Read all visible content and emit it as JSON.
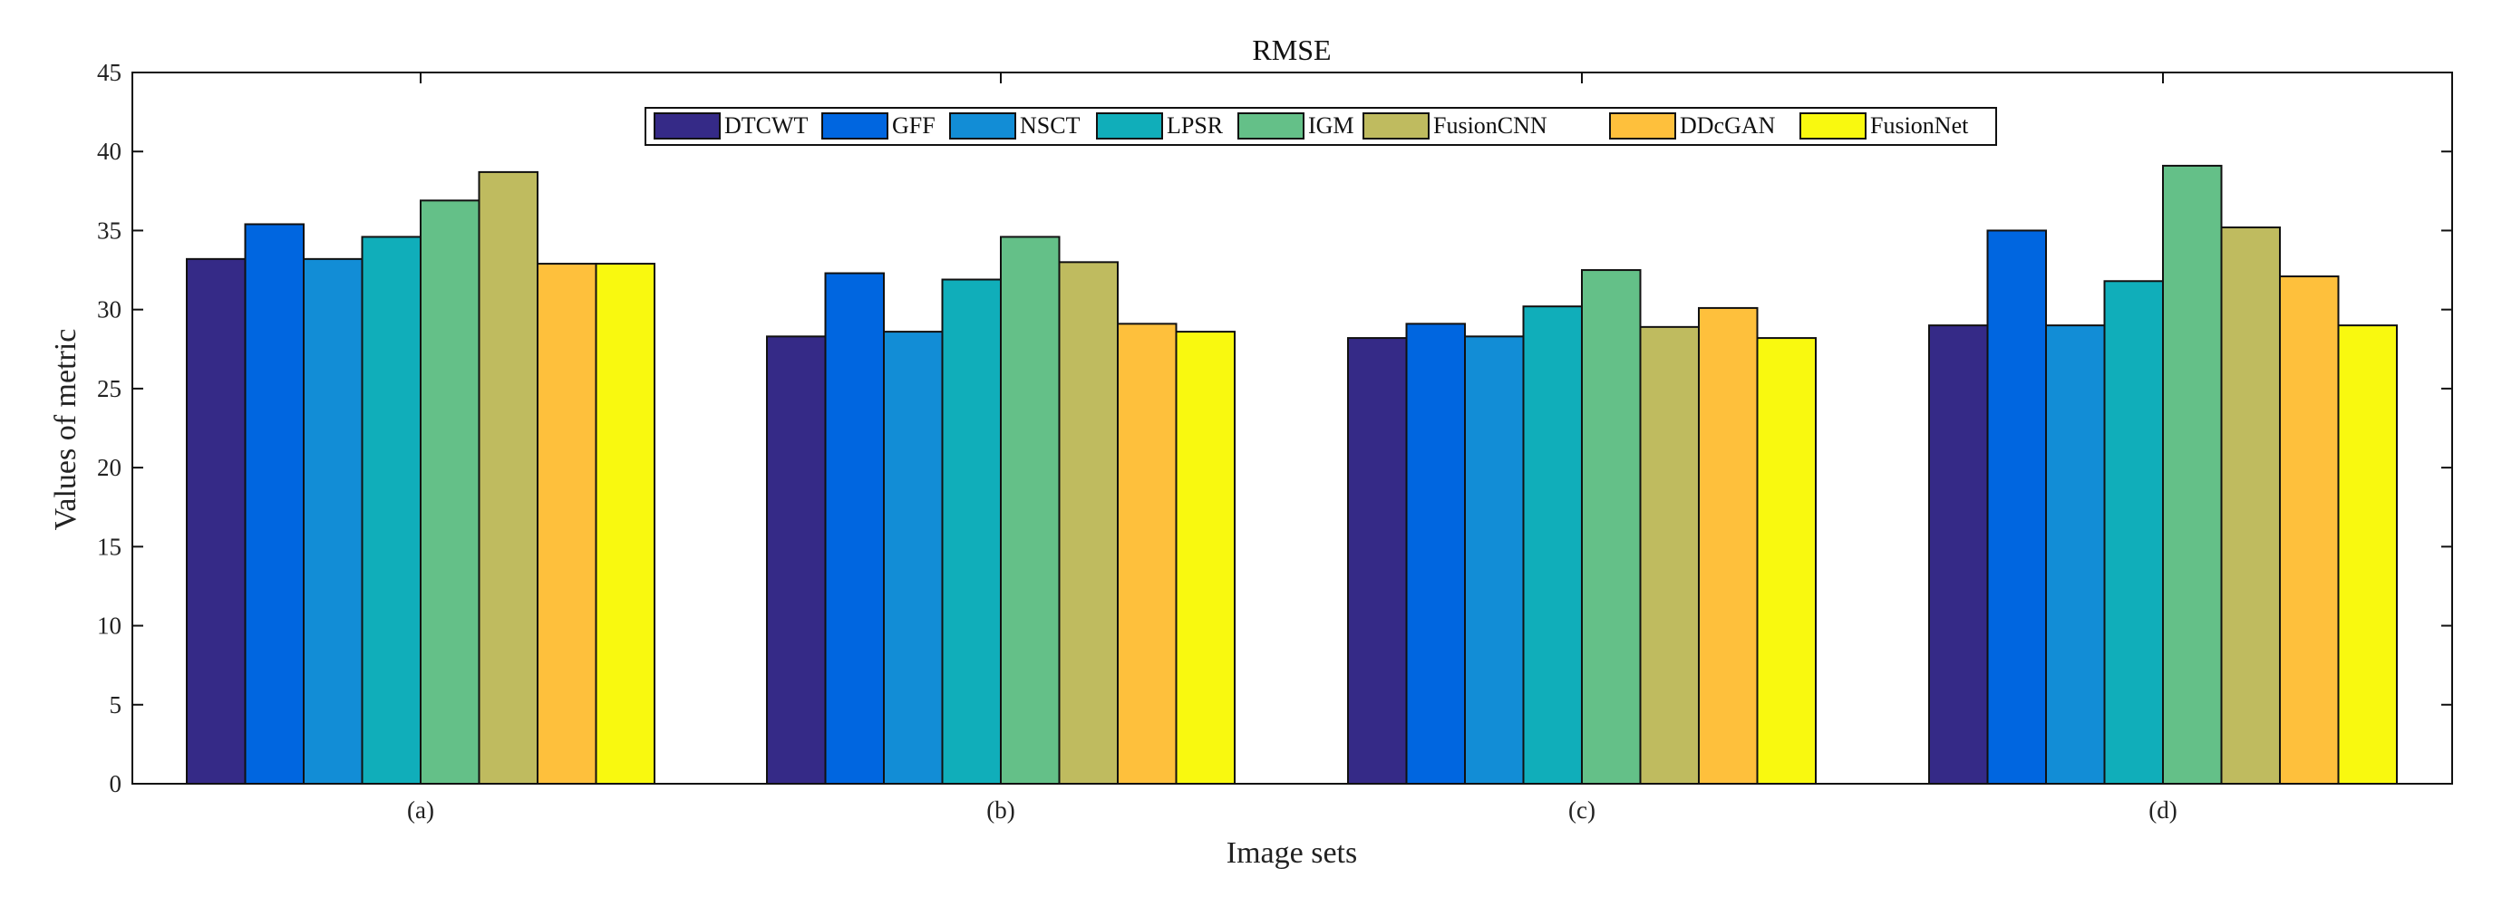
{
  "chart_data": {
    "type": "bar",
    "title": "RMSE",
    "xlabel": "Image sets",
    "ylabel": "Values of metric",
    "ylim": [
      0,
      45
    ],
    "yticks": [
      0,
      5,
      10,
      15,
      20,
      25,
      30,
      35,
      40,
      45
    ],
    "categories": [
      "(a)",
      "(b)",
      "(c)",
      "(d)"
    ],
    "legend_position": "top-center",
    "series": [
      {
        "name": "DTCWT",
        "color": "#352a87",
        "values": [
          33.2,
          28.3,
          28.2,
          29.0
        ]
      },
      {
        "name": "GFF",
        "color": "#0066e0",
        "values": [
          35.4,
          32.3,
          29.1,
          35.0
        ]
      },
      {
        "name": "NSCT",
        "color": "#128dd6",
        "values": [
          33.2,
          28.6,
          28.3,
          29.0
        ]
      },
      {
        "name": "LPSR",
        "color": "#10aeba",
        "values": [
          34.6,
          31.9,
          30.2,
          31.8
        ]
      },
      {
        "name": "IGM",
        "color": "#64c088",
        "values": [
          36.9,
          34.6,
          32.5,
          39.1
        ]
      },
      {
        "name": "FusionCNN",
        "color": "#bfbb5f",
        "values": [
          38.7,
          33.0,
          28.9,
          35.2
        ]
      },
      {
        "name": "DDcGAN",
        "color": "#fec03c",
        "values": [
          32.9,
          29.1,
          30.1,
          32.1
        ]
      },
      {
        "name": "FusionNet",
        "color": "#f9f90f",
        "values": [
          32.9,
          28.6,
          28.2,
          29.0
        ]
      }
    ]
  }
}
